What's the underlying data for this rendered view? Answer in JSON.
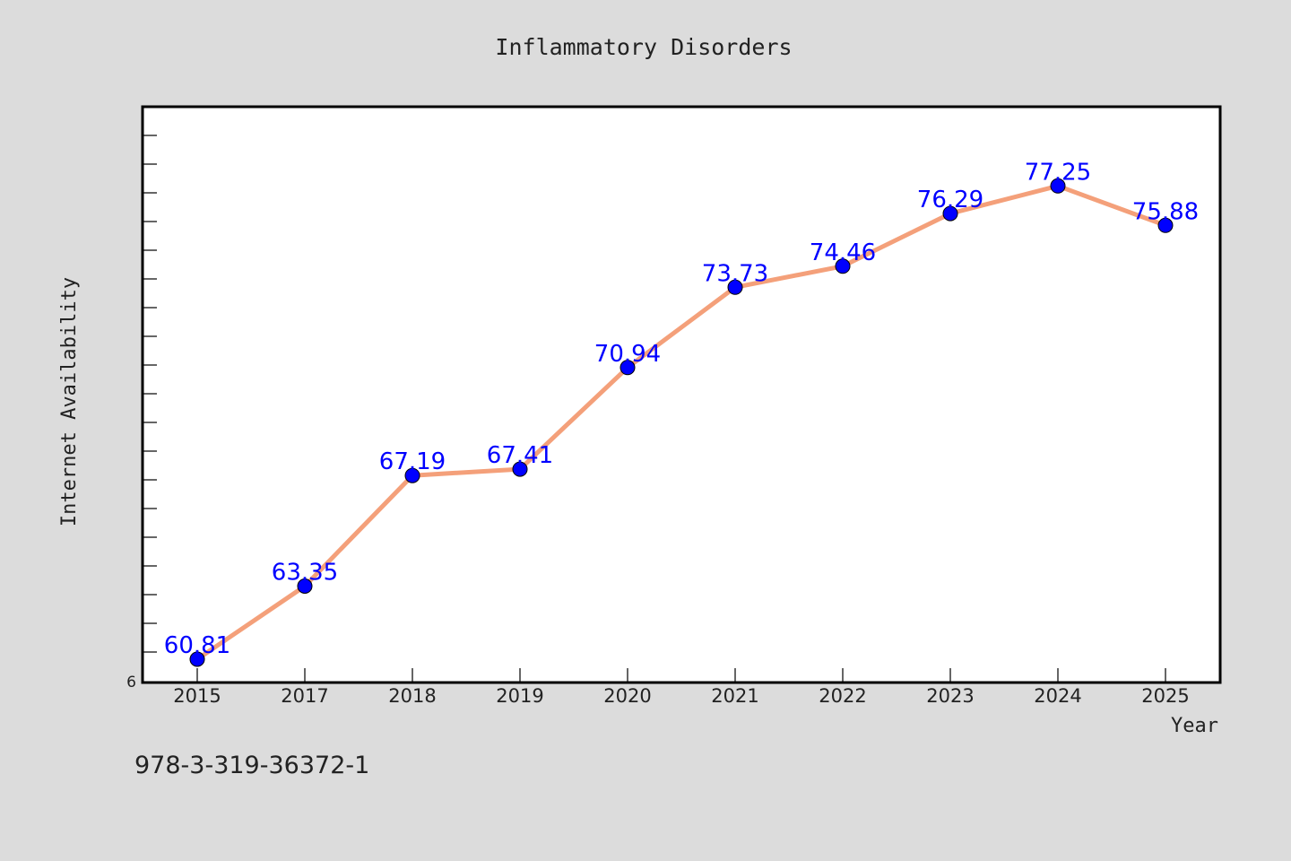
{
  "chart_data": {
    "type": "line",
    "title": "Inflammatory Disorders",
    "xlabel": "Year",
    "ylabel": "Internet Availability",
    "categories": [
      "2015",
      "2017",
      "2018",
      "2019",
      "2020",
      "2021",
      "2022",
      "2023",
      "2024",
      "2025"
    ],
    "series": [
      {
        "values": [
          60.81,
          63.35,
          67.19,
          67.41,
          70.94,
          73.73,
          74.46,
          76.29,
          77.25,
          75.88
        ],
        "data_labels": [
          "60.81",
          "63.35",
          "67.19",
          "67.41",
          "70.94",
          "73.73",
          "74.46",
          "76.29",
          "77.25",
          "75.88"
        ]
      }
    ],
    "ylim": [
      60,
      80
    ],
    "y_tick_labels": [
      "6"
    ],
    "grid": false,
    "legend": "none",
    "colors": {
      "line": "#f4a07a",
      "marker": "#0000ff",
      "data_label": "#0000ff",
      "plot_background": "#ffffff",
      "figure_background": "#dcdcdc"
    }
  },
  "footer_text": "978-3-319-36372-1"
}
